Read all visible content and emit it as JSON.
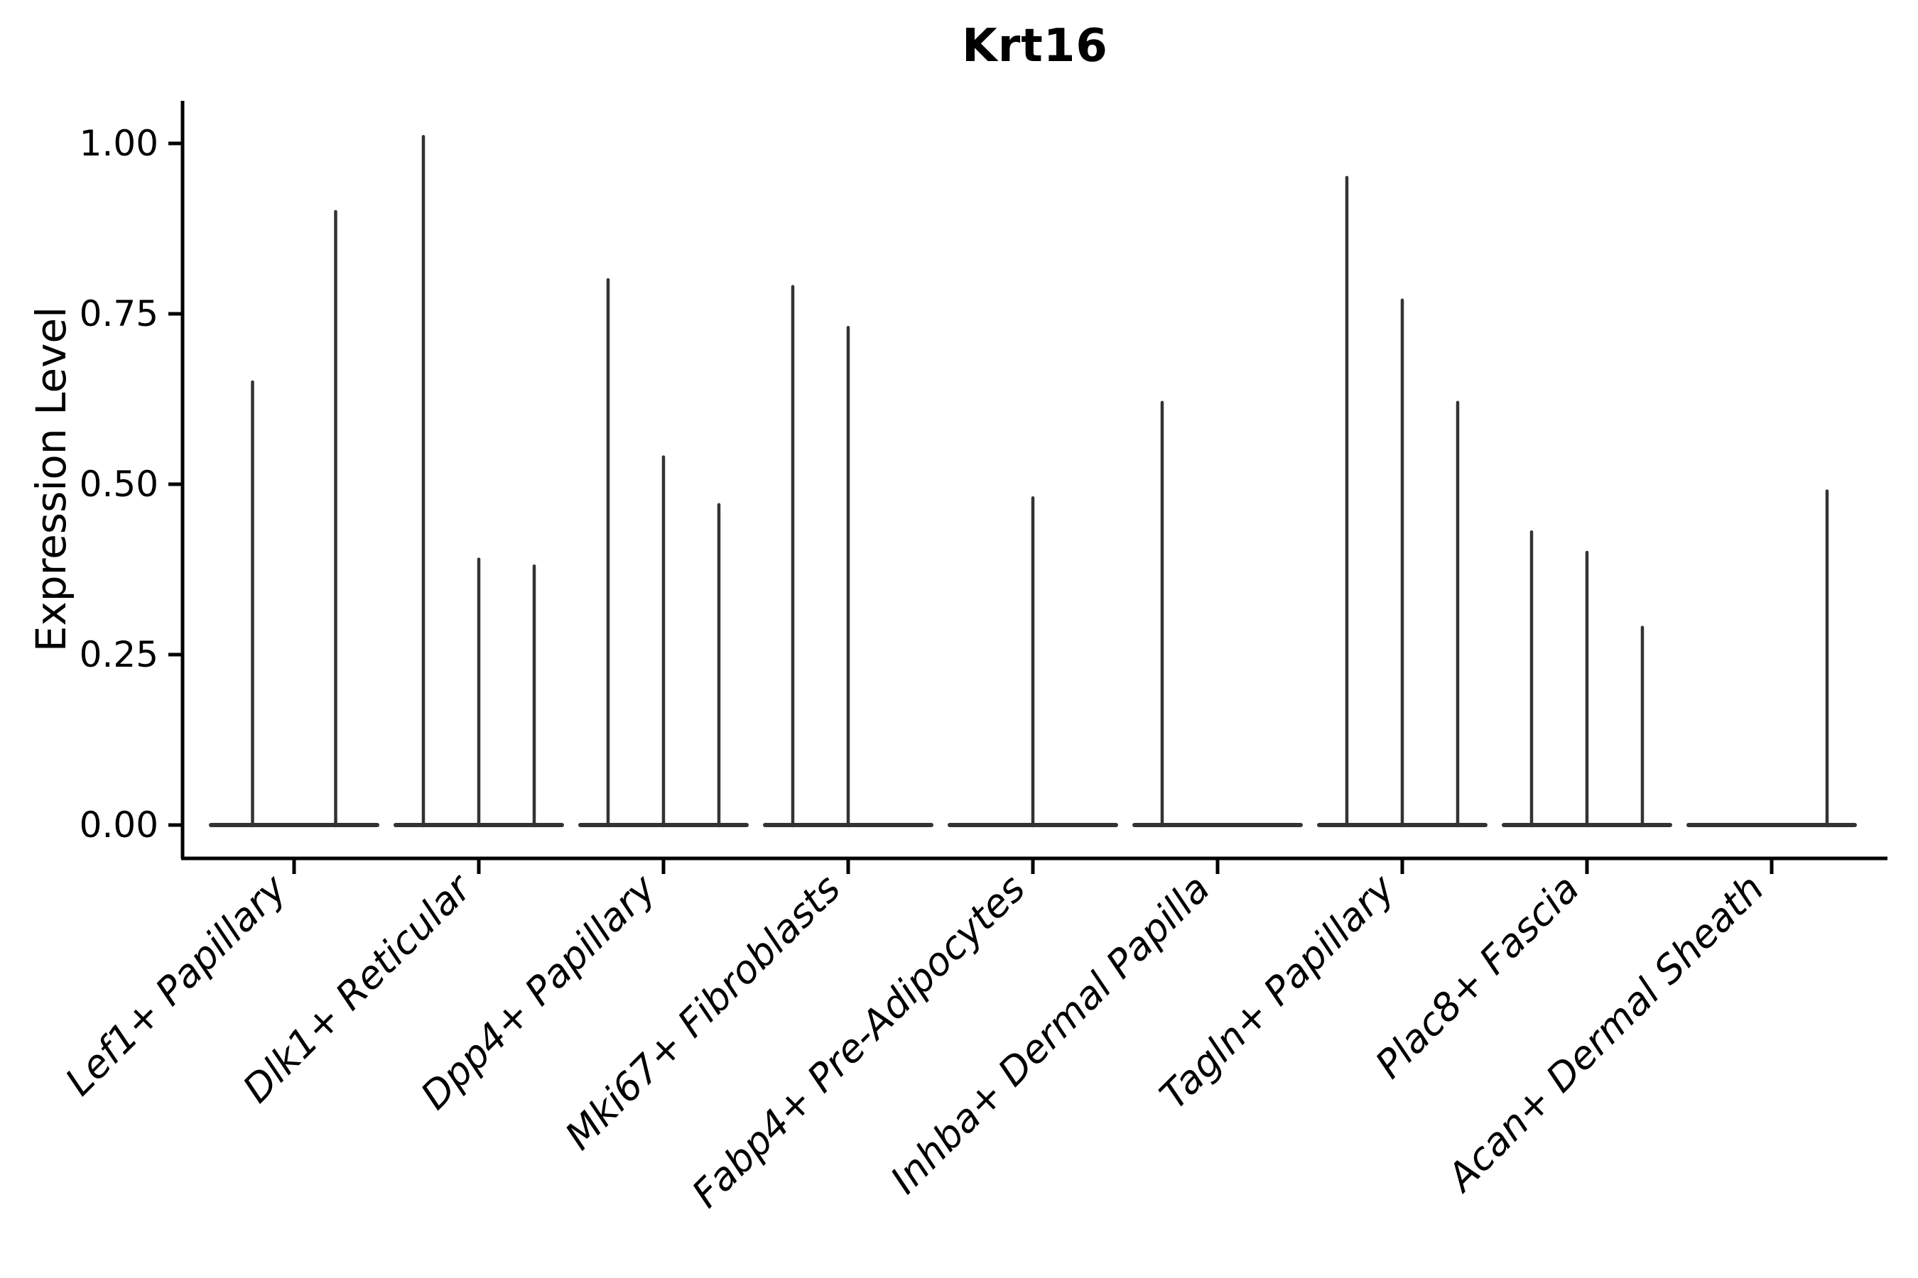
{
  "figure": {
    "title": "Krt16",
    "ylabel": "Expression Level"
  },
  "chart_data": {
    "type": "violin",
    "title": "Krt16",
    "xlabel": "",
    "ylabel": "Expression Level",
    "ylim": [
      0,
      1.06
    ],
    "grid": false,
    "legend": null,
    "violin_color": "#333333",
    "axis_color": "#000000",
    "yticks": [
      {
        "value": 0.0,
        "label": "0.00"
      },
      {
        "value": 0.25,
        "label": "0.25"
      },
      {
        "value": 0.5,
        "label": "0.50"
      },
      {
        "value": 0.75,
        "label": "0.75"
      },
      {
        "value": 1.0,
        "label": "1.00"
      }
    ],
    "note": "Each category holds 2-3 near-zero-width violins: a flat body at expression 0 plus a thin spike up to the listed max value. null = violin with no expressing cells (flat body only).",
    "categories": [
      {
        "label": "Lef1+ Papillary",
        "violins": [
          0.65,
          0.9
        ]
      },
      {
        "label": "Dlk1+ Reticular",
        "violins": [
          1.01,
          0.39,
          0.38
        ]
      },
      {
        "label": "Dpp4+ Papillary",
        "violins": [
          0.8,
          0.54,
          0.47
        ]
      },
      {
        "label": "Mki67+ Fibroblasts",
        "violins": [
          0.79,
          0.73,
          null
        ]
      },
      {
        "label": "Fabp4+ Pre-Adipocytes",
        "violins": [
          null,
          0.48,
          null
        ]
      },
      {
        "label": "Inhba+ Dermal Papilla",
        "violins": [
          0.62,
          null,
          null
        ]
      },
      {
        "label": "Tagln+ Papillary",
        "violins": [
          0.95,
          0.77,
          0.62
        ]
      },
      {
        "label": "Plac8+ Fascia",
        "violins": [
          0.43,
          0.4,
          0.29
        ]
      },
      {
        "label": "Acan+ Dermal Sheath",
        "violins": [
          null,
          null,
          0.49
        ]
      }
    ]
  }
}
